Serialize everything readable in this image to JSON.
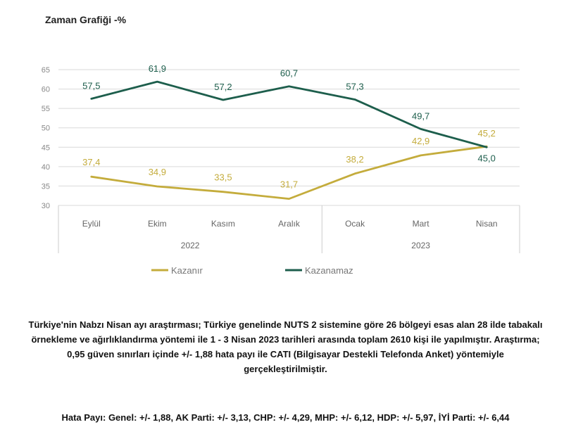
{
  "chart_data": {
    "type": "line",
    "title": "Zaman Grafiği -%",
    "categories": [
      "Eylül",
      "Ekim",
      "Kasım",
      "Aralık",
      "Ocak",
      "Mart",
      "Nisan"
    ],
    "year_groups": [
      {
        "label": "2022",
        "categories": [
          "Eylül",
          "Ekim",
          "Kasım",
          "Aralık"
        ]
      },
      {
        "label": "2023",
        "categories": [
          "Ocak",
          "Mart",
          "Nisan"
        ]
      }
    ],
    "series": [
      {
        "name": "Kazanır",
        "color": "#c4ac3c",
        "values": [
          37.4,
          34.9,
          33.5,
          31.7,
          38.2,
          42.9,
          45.2
        ],
        "labels": [
          "37,4",
          "34,9",
          "33,5",
          "31,7",
          "38,2",
          "42,9",
          "45,2"
        ]
      },
      {
        "name": "Kazanamaz",
        "color": "#1d5e4c",
        "values": [
          57.5,
          61.9,
          57.2,
          60.7,
          57.3,
          49.7,
          45.0
        ],
        "labels": [
          "57,5",
          "61,9",
          "57,2",
          "60,7",
          "57,3",
          "49,7",
          "45,0"
        ]
      }
    ],
    "yticks": [
      30,
      35,
      40,
      45,
      50,
      55,
      60,
      65
    ],
    "ylim": [
      30,
      65
    ],
    "grid": true,
    "legend_position": "bottom"
  },
  "description": "Türkiye'nin Nabzı Nisan ayı araştırması; Türkiye genelinde NUTS 2 sistemine göre 26 bölgeyi esas alan 28 ilde tabakalı örnekleme ve ağırlıklandırma yöntemi ile 1 - 3 Nisan 2023 tarihleri arasında toplam 2610 kişi ile yapılmıştır. Araştırma; 0,95 güven sınırları içinde +/- 1,88 hata payı ile CATI (Bilgisayar Destekli Telefonda Anket) yöntemiyle gerçekleştirilmiştir.",
  "margin_of_error": "Hata Payı: Genel: +/- 1,88, AK Parti: +/- 3,13, CHP: +/- 4,29, MHP: +/- 6,12, HDP: +/- 5,97, İYİ Parti: +/- 6,44"
}
